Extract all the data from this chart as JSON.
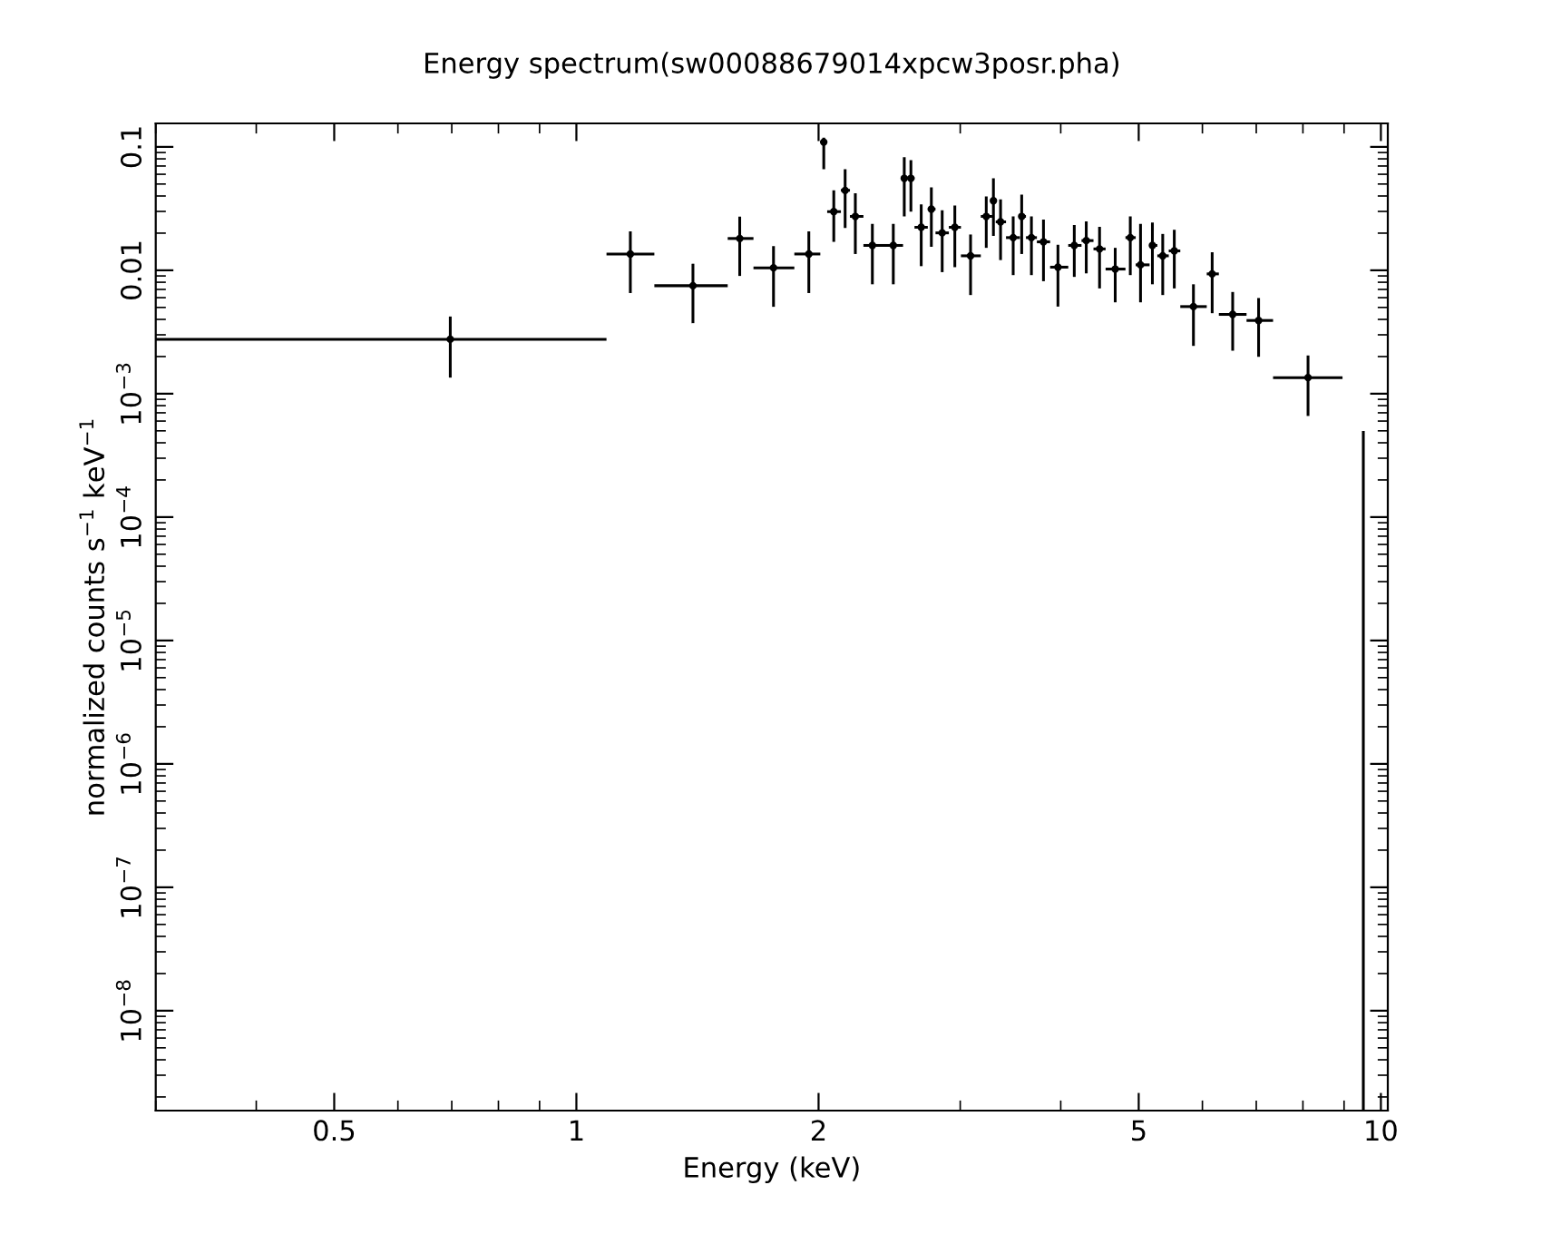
{
  "chart_data": {
    "type": "scatter",
    "title": "Energy spectrum(sw00088679014xpcw3posr.pha)",
    "xlabel": "Energy (keV)",
    "ylabel": "normalized counts s$^{−1}$ keV$^{−1}$",
    "log": "xy",
    "grid": false,
    "legend": false,
    "xlim": [
      0.3,
      10.2
    ],
    "xticks": [
      0.5,
      1,
      2,
      5,
      10
    ],
    "ylim": [
      1.55e-09,
      0.155
    ],
    "yticks": [
      0.1,
      0.01,
      {
        "value": 0.001,
        "label": "10$^{−3}$"
      },
      {
        "value": 0.0001,
        "label": "10$^{−4}$"
      },
      {
        "value": 1e-05,
        "label": "10$^{−5}$"
      },
      {
        "value": 1e-06,
        "label": "10$^{−6}$"
      },
      {
        "value": 1e-07,
        "label": "10$^{−7}$"
      },
      {
        "value": 1e-08,
        "label": "10$^{−8}$"
      }
    ],
    "series": [
      {
        "color": "#000000",
        "x": [
          0.697,
          1.167,
          1.396,
          1.596,
          1.758,
          1.945,
          2.03,
          2.089,
          2.158,
          2.222,
          2.333,
          2.477,
          2.556,
          2.605,
          2.683,
          2.762,
          2.849,
          2.954,
          3.09,
          3.232,
          3.299,
          3.367,
          3.491,
          3.577,
          3.678,
          3.807,
          3.968,
          4.158,
          4.303,
          4.47,
          4.675,
          4.881,
          5.026,
          5.2,
          5.356,
          5.536,
          5.848,
          6.17,
          6.543,
          7.047,
          8.118
        ],
        "values": [
          0.00276,
          0.01355,
          0.0075,
          0.0181,
          0.01047,
          0.01355,
          0.1094,
          0.0299,
          0.0444,
          0.0273,
          0.0159,
          0.0159,
          0.0556,
          0.0556,
          0.0223,
          0.0313,
          0.0201,
          0.0223,
          0.0131,
          0.0273,
          0.0366,
          0.0247,
          0.0184,
          0.0273,
          0.0184,
          0.017,
          0.0106,
          0.0159,
          0.0174,
          0.0149,
          0.01023,
          0.0184,
          0.01107,
          0.0159,
          0.0131,
          0.01436,
          0.00508,
          0.00935,
          0.00439,
          0.00392,
          0.00135
        ],
        "errors": [
          [
            0.00135,
            0.00422
          ],
          [
            0.00654,
            0.0207
          ],
          [
            0.00373,
            0.0113
          ],
          [
            0.009,
            0.0272
          ],
          [
            0.00506,
            0.0157
          ],
          [
            0.00654,
            0.0207
          ],
          [
            0.0659,
            0.1186
          ],
          [
            0.017,
            0.0444
          ],
          [
            0.022,
            0.0659
          ],
          [
            0.01355,
            0.042
          ],
          [
            0.0077,
            0.0238
          ],
          [
            0.0077,
            0.0238
          ],
          [
            0.0273,
            0.0826
          ],
          [
            0.0299,
            0.078
          ],
          [
            0.0108,
            0.0342
          ],
          [
            0.0155,
            0.047
          ],
          [
            0.00966,
            0.0306
          ],
          [
            0.0106,
            0.0335
          ],
          [
            0.0063,
            0.0195
          ],
          [
            0.0152,
            0.0396
          ],
          [
            0.019,
            0.0556
          ],
          [
            0.0121,
            0.0375
          ],
          [
            0.00914,
            0.0273
          ],
          [
            0.01355,
            0.041
          ],
          [
            0.00914,
            0.0273
          ],
          [
            0.00816,
            0.0258
          ],
          [
            0.00508,
            0.0161
          ],
          [
            0.00884,
            0.0233
          ],
          [
            0.00944,
            0.0249
          ],
          [
            0.00713,
            0.0225
          ],
          [
            0.0055,
            0.0152
          ],
          [
            0.00914,
            0.0273
          ],
          [
            0.0055,
            0.0238
          ],
          [
            0.0077,
            0.0244
          ],
          [
            0.0063,
            0.0197
          ],
          [
            0.00713,
            0.0213
          ],
          [
            0.00244,
            0.0077
          ],
          [
            0.00449,
            0.014
          ],
          [
            0.00223,
            0.00667
          ],
          [
            0.00199,
            0.00596
          ],
          [
            0.00066,
            0.00204
          ]
        ],
        "xerrors": [
          [
            0.3,
            1.09
          ],
          [
            1.09,
            1.25
          ],
          [
            1.25,
            1.542
          ],
          [
            1.542,
            1.66
          ],
          [
            1.66,
            1.866
          ],
          [
            1.866,
            2.01
          ],
          [
            2.01,
            2.05
          ],
          [
            2.05,
            2.132
          ],
          [
            2.132,
            2.188
          ],
          [
            2.188,
            2.274
          ],
          [
            2.274,
            2.402
          ],
          [
            2.402,
            2.547
          ],
          [
            2.538,
            2.578
          ],
          [
            2.578,
            2.632
          ],
          [
            2.632,
            2.734
          ],
          [
            2.734,
            2.795
          ],
          [
            2.795,
            2.904
          ],
          [
            2.904,
            3.006
          ],
          [
            3.006,
            3.182
          ],
          [
            3.182,
            3.288
          ],
          [
            3.288,
            3.321
          ],
          [
            3.321,
            3.42
          ],
          [
            3.42,
            3.559
          ],
          [
            3.559,
            3.621
          ],
          [
            3.621,
            3.736
          ],
          [
            3.736,
            3.88
          ],
          [
            3.88,
            4.087
          ],
          [
            4.087,
            4.245
          ],
          [
            4.245,
            4.393
          ],
          [
            4.393,
            4.548
          ],
          [
            4.548,
            4.814
          ],
          [
            4.814,
            4.957
          ],
          [
            4.957,
            5.158
          ],
          [
            5.158,
            5.274
          ],
          [
            5.274,
            5.449
          ],
          [
            5.449,
            5.632
          ],
          [
            5.632,
            6.075
          ],
          [
            6.075,
            6.289
          ],
          [
            6.289,
            6.808
          ],
          [
            6.808,
            7.345
          ],
          [
            7.345,
            8.96
          ]
        ]
      },
      {
        "type": "line",
        "color": "#000000",
        "x": [
          9.51,
          9.51
        ],
        "values": [
          0.000485,
          1.55e-09
        ]
      }
    ]
  }
}
